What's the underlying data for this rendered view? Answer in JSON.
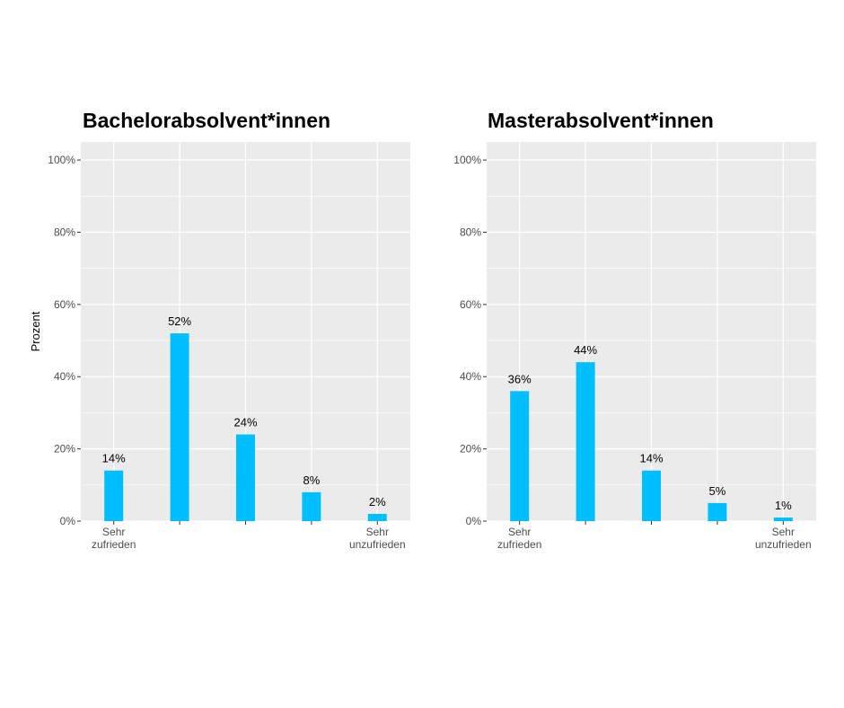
{
  "chart_data": [
    {
      "type": "bar",
      "title": "Bachelorabsolvent*innen",
      "ylabel": "Prozent",
      "xlabel": "",
      "categories": [
        [
          "Sehr",
          "zufrieden"
        ],
        [
          ""
        ],
        [
          ""
        ],
        [
          ""
        ],
        [
          "Sehr",
          "unzufrieden"
        ]
      ],
      "values": [
        14,
        52,
        24,
        8,
        2
      ],
      "data_labels": [
        "14%",
        "52%",
        "24%",
        "8%",
        "2%"
      ],
      "ylim": [
        0,
        105
      ],
      "yticks": [
        0,
        20,
        40,
        60,
        80,
        100
      ],
      "ytick_labels": [
        "0%",
        "20%",
        "40%",
        "60%",
        "80%",
        "100%"
      ],
      "grid": true,
      "bar_color": "#00bfff"
    },
    {
      "type": "bar",
      "title": "Masterabsolvent*innen",
      "ylabel": "",
      "xlabel": "",
      "categories": [
        [
          "Sehr",
          "zufrieden"
        ],
        [
          ""
        ],
        [
          ""
        ],
        [
          ""
        ],
        [
          "Sehr",
          "unzufrieden"
        ]
      ],
      "values": [
        36,
        44,
        14,
        5,
        1
      ],
      "data_labels": [
        "36%",
        "44%",
        "14%",
        "5%",
        "1%"
      ],
      "ylim": [
        0,
        105
      ],
      "yticks": [
        0,
        20,
        40,
        60,
        80,
        100
      ],
      "ytick_labels": [
        "0%",
        "20%",
        "40%",
        "60%",
        "80%",
        "100%"
      ],
      "grid": true,
      "bar_color": "#00bfff"
    }
  ],
  "colors": {
    "panel_background": "#ebebeb",
    "grid": "#ffffff",
    "bar": "#00bfff"
  }
}
